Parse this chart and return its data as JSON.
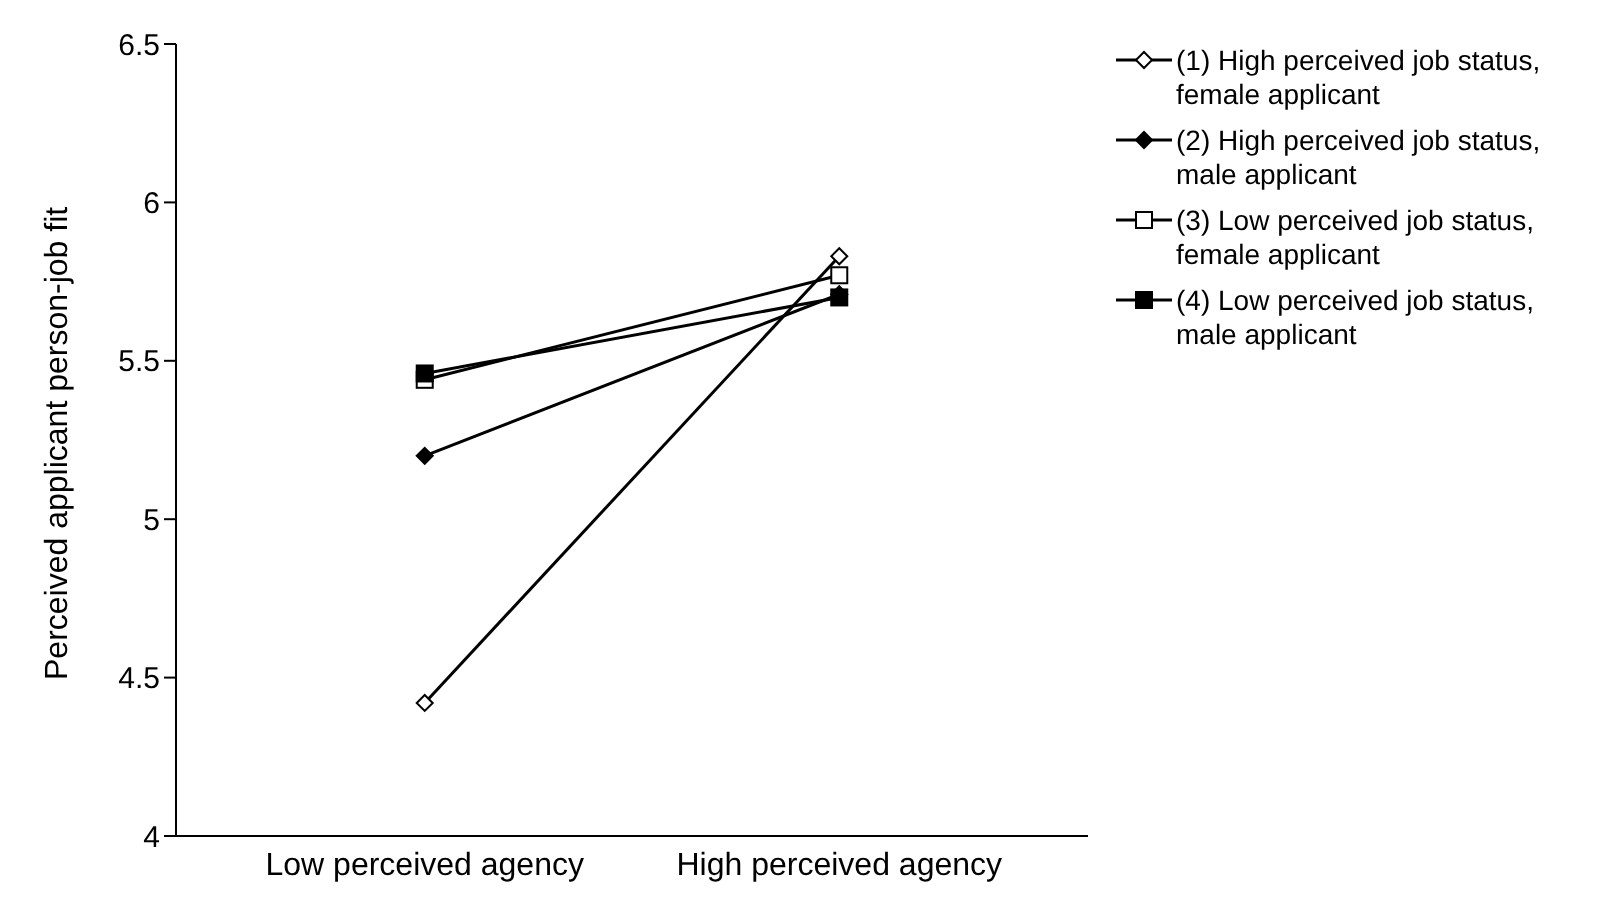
{
  "chart_data": {
    "type": "line",
    "ylabel": "Perceived applicant person-job fit",
    "categories": [
      "Low perceived agency",
      "High perceived agency"
    ],
    "ylim": [
      4,
      6.5
    ],
    "yticks": [
      4,
      4.5,
      5,
      5.5,
      6,
      6.5
    ],
    "grid": false,
    "legend": "right",
    "line_style": "solid",
    "series": [
      {
        "name": "(1) High perceived job status, female applicant",
        "color": "#000000",
        "marker": "diamond",
        "values": [
          4.42,
          5.83
        ]
      },
      {
        "name": "(2) High perceived job status, male applicant",
        "color": "#000000",
        "marker": "diamond",
        "values": [
          5.2,
          5.71
        ]
      },
      {
        "name": "(3) Low perceived job status, female applicant",
        "color": "#000000",
        "marker": "square",
        "values": [
          5.44,
          5.77
        ]
      },
      {
        "name": "(4) Low perceived job status, male applicant",
        "color": "#000000",
        "marker": "square",
        "values": [
          5.46,
          5.7
        ]
      }
    ]
  }
}
